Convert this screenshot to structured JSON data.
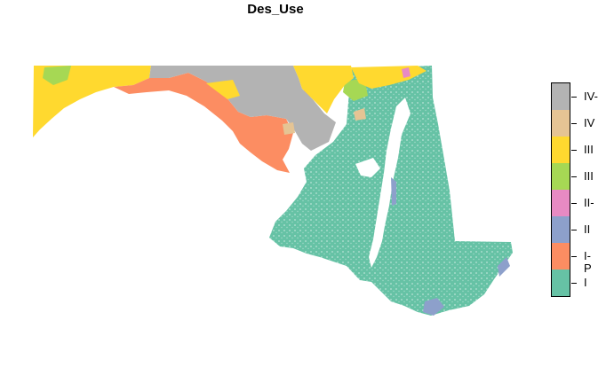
{
  "title": "Des_Use",
  "legend": {
    "classes": [
      {
        "label": "IV-",
        "color": "#b3b3b3"
      },
      {
        "label": "IV",
        "color": "#e5c494"
      },
      {
        "label": "III",
        "color": "#ffd92f"
      },
      {
        "label": "III",
        "color": "#a6d854"
      },
      {
        "label": "II-",
        "color": "#e78ac3"
      },
      {
        "label": "II",
        "color": "#8da0cb"
      },
      {
        "label": "I-P",
        "color": "#fc8d62"
      },
      {
        "label": "I",
        "color": "#66c2a5"
      }
    ]
  }
}
